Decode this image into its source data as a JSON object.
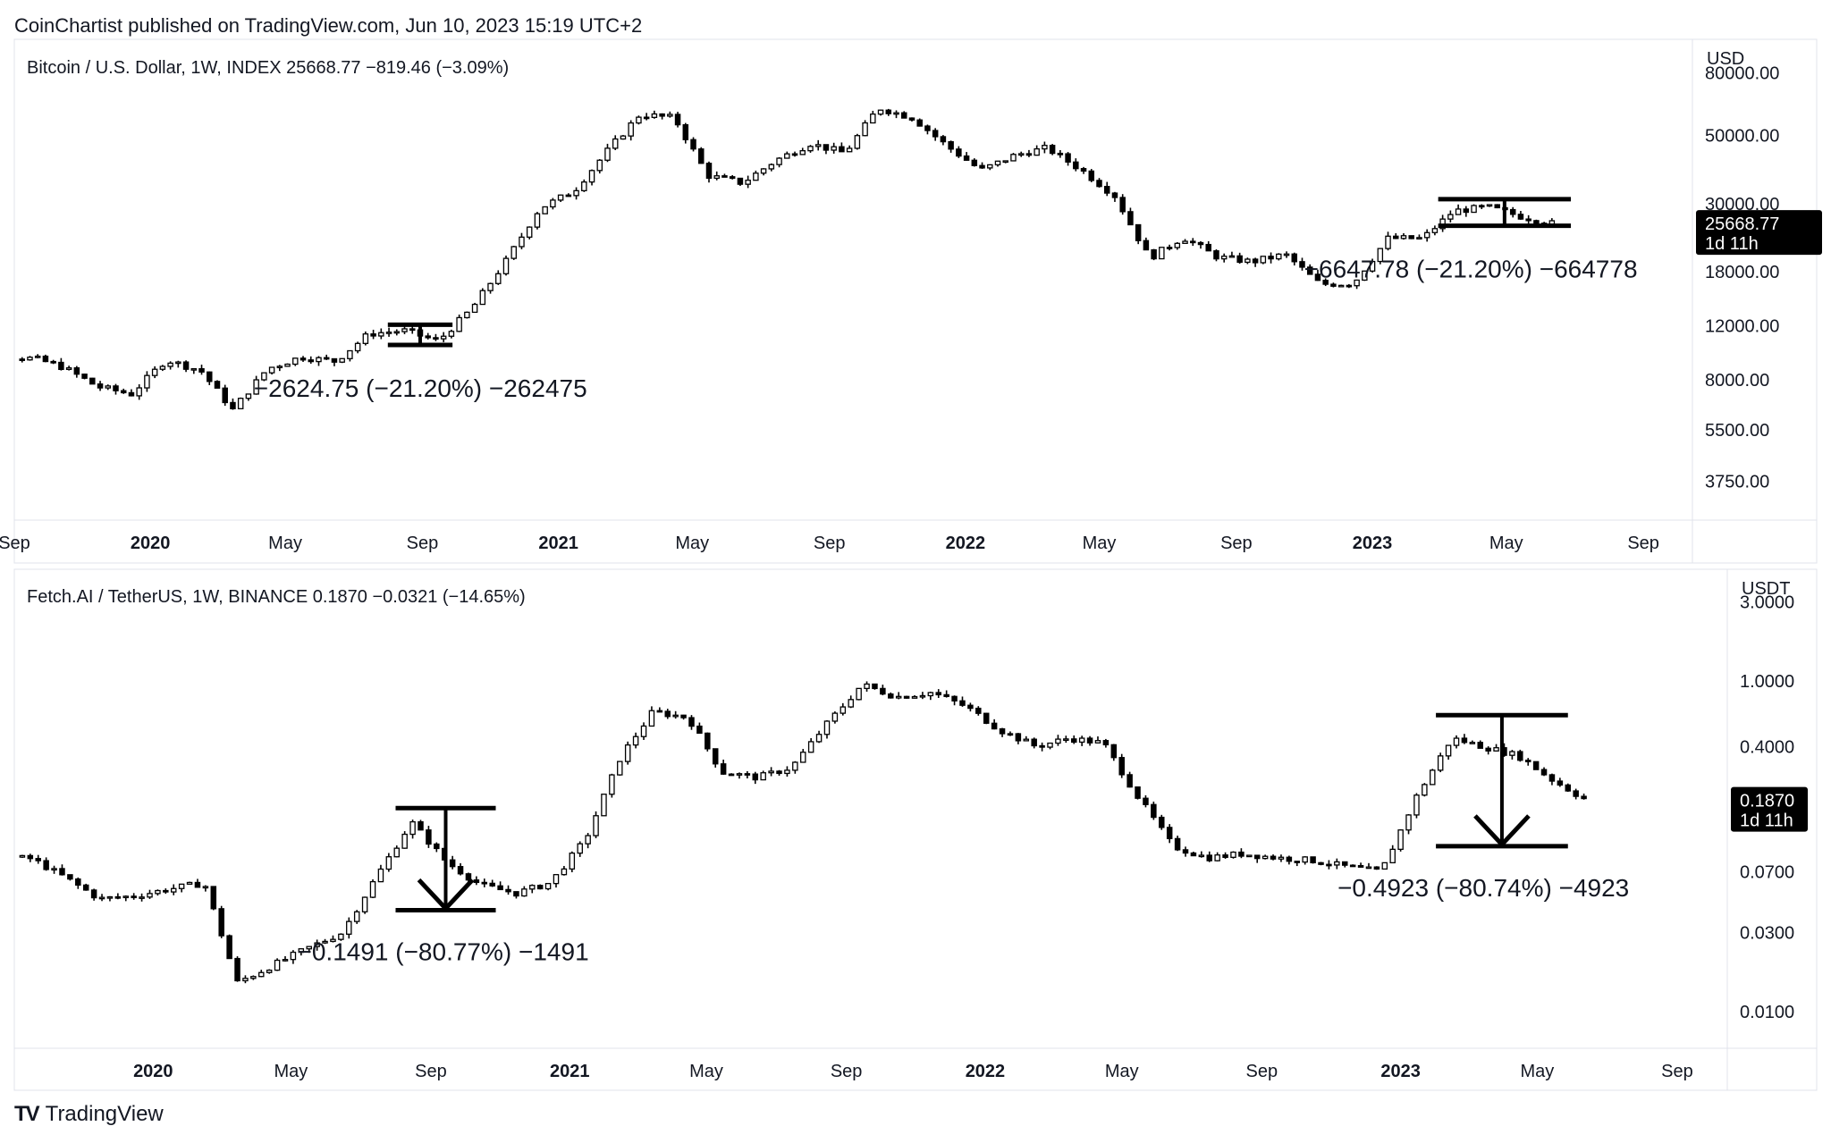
{
  "publisher": "CoinChartist published on TradingView.com, Jun 10, 2023 15:19 UTC+2",
  "brand": "TradingView",
  "colors": {
    "up_fill": "#ffffff",
    "down_fill": "#000000",
    "stroke": "#000000",
    "grid": "#e0e3eb"
  },
  "chart_data": [
    {
      "type": "candlestick",
      "title": "Bitcoin / U.S. Dollar, 1W, INDEX",
      "last": "25668.77",
      "change": "−819.46 (−3.09%)",
      "unit": "USD",
      "scale": "log",
      "ylim": [
        2800,
        100000
      ],
      "yticks": [
        "80000.00",
        "50000.00",
        "30000.00",
        "18000.00",
        "12000.00",
        "8000.00",
        "5500.00",
        "3750.00"
      ],
      "xticks": [
        "Sep",
        "2020",
        "May",
        "Sep",
        "2021",
        "May",
        "Sep",
        "2022",
        "May",
        "Sep",
        "2023",
        "May",
        "Sep"
      ],
      "xrange": [
        "2019-09-01",
        "2023-10-15"
      ],
      "last_label": {
        "price": "25668.77",
        "countdown": "1d 11h"
      },
      "x": [
        "2019-09",
        "2019-10",
        "2019-11",
        "2019-12",
        "2020-01",
        "2020-02",
        "2020-03",
        "2020-04",
        "2020-05",
        "2020-06",
        "2020-07",
        "2020-08",
        "2020-09",
        "2020-10",
        "2020-11",
        "2020-12",
        "2021-01",
        "2021-02",
        "2021-03",
        "2021-04",
        "2021-05",
        "2021-06",
        "2021-07",
        "2021-08",
        "2021-09",
        "2021-10",
        "2021-11",
        "2021-12",
        "2022-01",
        "2022-02",
        "2022-03",
        "2022-04",
        "2022-05",
        "2022-06",
        "2022-07",
        "2022-08",
        "2022-09",
        "2022-10",
        "2022-11",
        "2022-12",
        "2023-01",
        "2023-02",
        "2023-03",
        "2023-04",
        "2023-05",
        "2023-06"
      ],
      "close": [
        9500,
        8800,
        7600,
        7200,
        9300,
        8600,
        6400,
        8700,
        9500,
        9200,
        11300,
        11600,
        10700,
        13600,
        19500,
        28900,
        33000,
        45000,
        58500,
        57000,
        37000,
        35000,
        41500,
        47000,
        43800,
        61500,
        57000,
        46300,
        38500,
        43200,
        45500,
        38600,
        31800,
        19900,
        23300,
        20100,
        19400,
        20500,
        16400,
        16500,
        23100,
        23100,
        28400,
        29200,
        27200,
        25668
      ],
      "labels": [
        {
          "box": [
            "2020-08",
            "2020-09"
          ],
          "box_range": [
            10400,
            12100
          ],
          "text": "−2624.75 (−21.20%) −262475"
        },
        {
          "box": [
            "2023-03",
            "2023-06"
          ],
          "box_range": [
            25400,
            31000
          ],
          "text": "−6647.78 (−21.20%) −664778"
        }
      ]
    },
    {
      "type": "candlestick",
      "title": "Fetch.AI / TetherUS, 1W, BINANCE",
      "last": "0.1870",
      "change": "−0.0321 (−14.65%)",
      "unit": "USDT",
      "scale": "log",
      "ylim": [
        0.006,
        4.5
      ],
      "yticks": [
        "3.0000",
        "1.0000",
        "0.4000",
        "0.0700",
        "0.0300",
        "0.0100"
      ],
      "xticks": [
        "2020",
        "May",
        "Sep",
        "2021",
        "May",
        "Sep",
        "2022",
        "May",
        "Sep",
        "2023",
        "May",
        "Sep"
      ],
      "xrange": [
        "2019-09-01",
        "2023-10-15"
      ],
      "last_label": {
        "price": "0.1870",
        "countdown": "1d 11h"
      },
      "x": [
        "2019-09",
        "2019-10",
        "2019-11",
        "2019-12",
        "2020-01",
        "2020-02",
        "2020-03",
        "2020-04",
        "2020-05",
        "2020-06",
        "2020-07",
        "2020-08",
        "2020-09",
        "2020-10",
        "2020-11",
        "2020-12",
        "2021-01",
        "2021-02",
        "2021-03",
        "2021-04",
        "2021-05",
        "2021-06",
        "2021-07",
        "2021-08",
        "2021-09",
        "2021-10",
        "2021-11",
        "2021-12",
        "2022-01",
        "2022-02",
        "2022-03",
        "2022-04",
        "2022-05",
        "2022-06",
        "2022-07",
        "2022-08",
        "2022-09",
        "2022-10",
        "2022-11",
        "2022-12",
        "2023-01",
        "2023-02",
        "2023-03",
        "2023-04",
        "2023-05",
        "2023-06"
      ],
      "close": [
        0.085,
        0.065,
        0.048,
        0.05,
        0.055,
        0.06,
        0.015,
        0.019,
        0.024,
        0.03,
        0.065,
        0.14,
        0.08,
        0.058,
        0.052,
        0.06,
        0.11,
        0.35,
        0.65,
        0.6,
        0.28,
        0.26,
        0.3,
        0.55,
        0.95,
        0.8,
        0.85,
        0.7,
        0.5,
        0.4,
        0.45,
        0.42,
        0.2,
        0.1,
        0.085,
        0.09,
        0.085,
        0.082,
        0.075,
        0.07,
        0.2,
        0.45,
        0.4,
        0.35,
        0.25,
        0.187
      ],
      "labels": [
        {
          "range": [
            "2020-08",
            "2020-10"
          ],
          "high": 0.17,
          "low": 0.041,
          "text": "−0.1491 (−80.77%) −1491"
        },
        {
          "range": [
            "2023-02",
            "2023-05"
          ],
          "high": 0.62,
          "low": 0.1,
          "text": "−0.4923 (−80.74%) −4923"
        }
      ]
    }
  ]
}
